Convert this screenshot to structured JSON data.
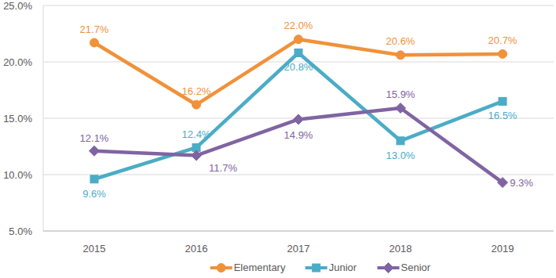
{
  "chart_data": {
    "type": "line",
    "categories": [
      "2015",
      "2016",
      "2017",
      "2018",
      "2019"
    ],
    "series": [
      {
        "name": "Elementary",
        "color": "#f0923a",
        "marker": "circle",
        "line_style": "solid",
        "values": [
          21.7,
          16.2,
          22.0,
          20.6,
          20.7
        ],
        "value_labels": [
          "21.7%",
          "16.2%",
          "22.0%",
          "20.6%",
          "20.7%"
        ]
      },
      {
        "name": "Junior",
        "color": "#4bacc6",
        "marker": "square",
        "line_style": "solid",
        "values": [
          9.6,
          12.4,
          20.8,
          13.0,
          16.5
        ],
        "value_labels": [
          "9.6%",
          "12.4%",
          "20.8%",
          "13.0%",
          "16.5%"
        ]
      },
      {
        "name": "Senior",
        "color": "#8064a2",
        "marker": "diamond",
        "line_style": "solid",
        "values": [
          12.1,
          11.7,
          14.9,
          15.9,
          9.3
        ],
        "value_labels": [
          "12.1%",
          "11.7%",
          "14.9%",
          "15.9%",
          "9.3%"
        ]
      }
    ],
    "ylim": [
      5,
      25
    ],
    "yticks": [
      {
        "value": 5,
        "label": "5.0%"
      },
      {
        "value": 10,
        "label": "10.0%"
      },
      {
        "value": 15,
        "label": "15.0%"
      },
      {
        "value": 20,
        "label": "20.0%"
      },
      {
        "value": 25,
        "label": "25.0%"
      }
    ],
    "grid": true,
    "legend": "bottom",
    "data_labels": true
  }
}
